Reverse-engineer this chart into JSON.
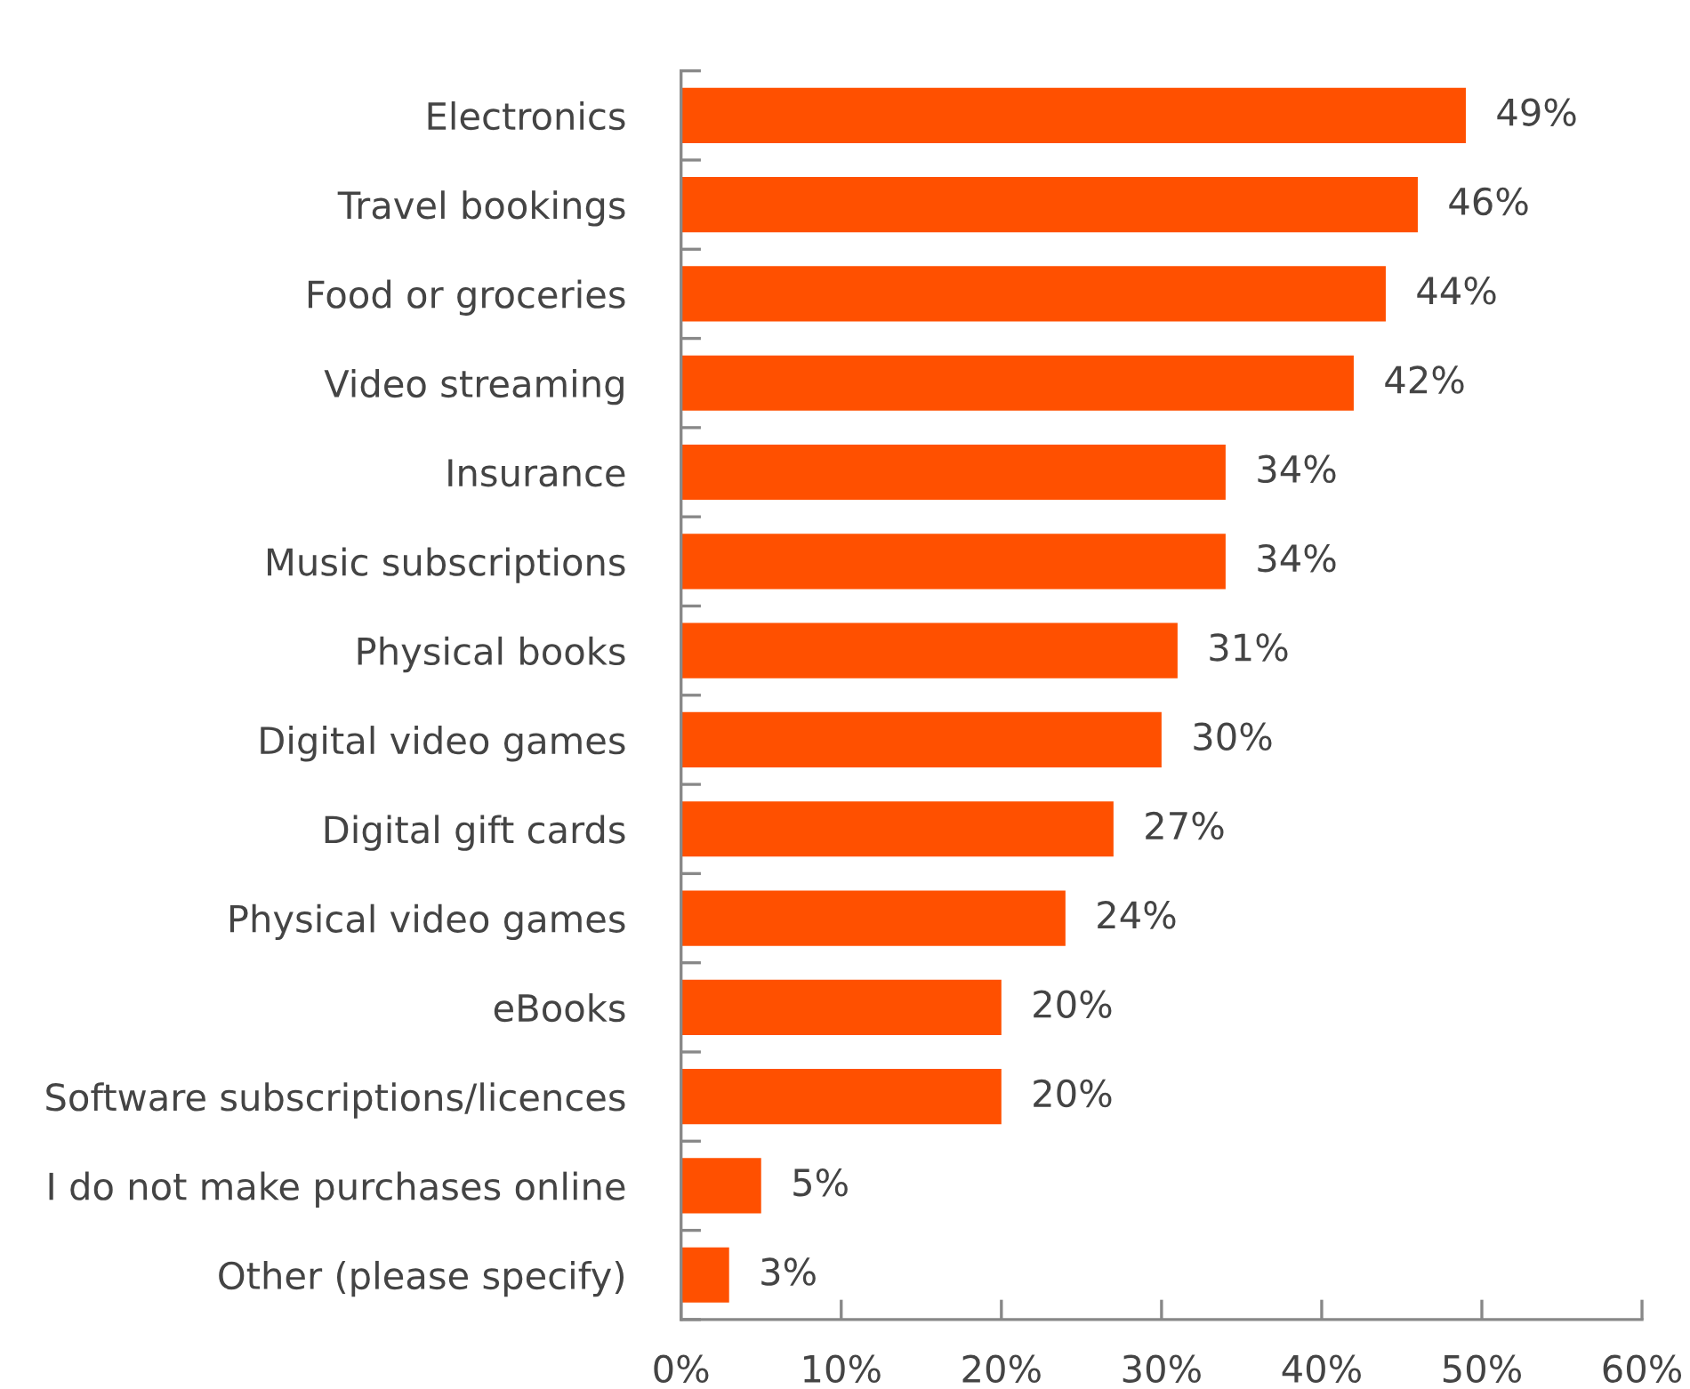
{
  "chart_data": {
    "type": "bar",
    "orientation": "horizontal",
    "categories": [
      "Electronics",
      "Travel bookings",
      "Food or groceries",
      "Video streaming",
      "Insurance",
      "Music subscriptions",
      "Physical books",
      "Digital video games",
      "Digital gift cards",
      "Physical video games",
      "eBooks",
      "Software subscriptions/licences",
      "I do not make purchases online",
      "Other (please specify)"
    ],
    "values": [
      49,
      46,
      44,
      42,
      34,
      34,
      31,
      30,
      27,
      24,
      20,
      20,
      5,
      3
    ],
    "color": "#ff5000",
    "value_labels": [
      "49%",
      "46%",
      "44%",
      "42%",
      "34%",
      "34%",
      "31%",
      "30%",
      "27%",
      "24%",
      "20%",
      "20%",
      "5%",
      "3%"
    ],
    "xlim": [
      0,
      60
    ],
    "xticks": [
      {
        "value": 0,
        "label": "0%"
      },
      {
        "value": 10,
        "label": "10%"
      },
      {
        "value": 20,
        "label": "20%"
      },
      {
        "value": 30,
        "label": "30%"
      },
      {
        "value": 40,
        "label": "40%"
      },
      {
        "value": 50,
        "label": "50%"
      },
      {
        "value": 60,
        "label": "60%"
      }
    ],
    "grid": false,
    "legend": false
  }
}
